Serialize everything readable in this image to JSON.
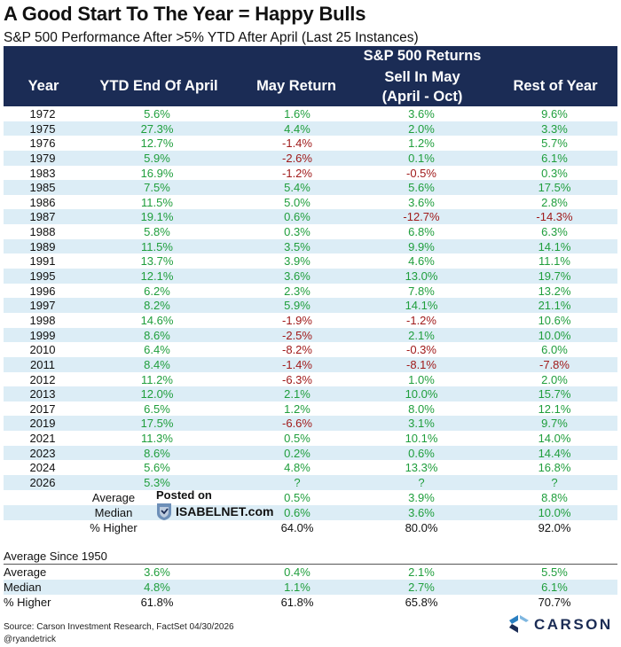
{
  "chart_data": {
    "type": "table",
    "title": "A Good Start To The Year = Happy Bulls",
    "subtitle": "S&P 500 Performance After >5% YTD After April (Last 25 Instances)",
    "header": {
      "year": "Year",
      "ytd": "YTD End Of April",
      "may": "May Return",
      "group": "S&P 500 Returns",
      "sell_line1": "Sell In May",
      "sell_line2": "(April - Oct)",
      "rest": "Rest of Year"
    },
    "rows": [
      {
        "year": "1972",
        "ytd": "5.6%",
        "may": "1.6%",
        "sell": "3.6%",
        "rest": "9.6%"
      },
      {
        "year": "1975",
        "ytd": "27.3%",
        "may": "4.4%",
        "sell": "2.0%",
        "rest": "3.3%"
      },
      {
        "year": "1976",
        "ytd": "12.7%",
        "may": "-1.4%",
        "sell": "1.2%",
        "rest": "5.7%"
      },
      {
        "year": "1979",
        "ytd": "5.9%",
        "may": "-2.6%",
        "sell": "0.1%",
        "rest": "6.1%"
      },
      {
        "year": "1983",
        "ytd": "16.9%",
        "may": "-1.2%",
        "sell": "-0.5%",
        "rest": "0.3%"
      },
      {
        "year": "1985",
        "ytd": "7.5%",
        "may": "5.4%",
        "sell": "5.6%",
        "rest": "17.5%"
      },
      {
        "year": "1986",
        "ytd": "11.5%",
        "may": "5.0%",
        "sell": "3.6%",
        "rest": "2.8%"
      },
      {
        "year": "1987",
        "ytd": "19.1%",
        "may": "0.6%",
        "sell": "-12.7%",
        "rest": "-14.3%"
      },
      {
        "year": "1988",
        "ytd": "5.8%",
        "may": "0.3%",
        "sell": "6.8%",
        "rest": "6.3%"
      },
      {
        "year": "1989",
        "ytd": "11.5%",
        "may": "3.5%",
        "sell": "9.9%",
        "rest": "14.1%"
      },
      {
        "year": "1991",
        "ytd": "13.7%",
        "may": "3.9%",
        "sell": "4.6%",
        "rest": "11.1%"
      },
      {
        "year": "1995",
        "ytd": "12.1%",
        "may": "3.6%",
        "sell": "13.0%",
        "rest": "19.7%"
      },
      {
        "year": "1996",
        "ytd": "6.2%",
        "may": "2.3%",
        "sell": "7.8%",
        "rest": "13.2%"
      },
      {
        "year": "1997",
        "ytd": "8.2%",
        "may": "5.9%",
        "sell": "14.1%",
        "rest": "21.1%"
      },
      {
        "year": "1998",
        "ytd": "14.6%",
        "may": "-1.9%",
        "sell": "-1.2%",
        "rest": "10.6%"
      },
      {
        "year": "1999",
        "ytd": "8.6%",
        "may": "-2.5%",
        "sell": "2.1%",
        "rest": "10.0%"
      },
      {
        "year": "2010",
        "ytd": "6.4%",
        "may": "-8.2%",
        "sell": "-0.3%",
        "rest": "6.0%"
      },
      {
        "year": "2011",
        "ytd": "8.4%",
        "may": "-1.4%",
        "sell": "-8.1%",
        "rest": "-7.8%"
      },
      {
        "year": "2012",
        "ytd": "11.2%",
        "may": "-6.3%",
        "sell": "1.0%",
        "rest": "2.0%"
      },
      {
        "year": "2013",
        "ytd": "12.0%",
        "may": "2.1%",
        "sell": "10.0%",
        "rest": "15.7%"
      },
      {
        "year": "2017",
        "ytd": "6.5%",
        "may": "1.2%",
        "sell": "8.0%",
        "rest": "12.1%"
      },
      {
        "year": "2019",
        "ytd": "17.5%",
        "may": "-6.6%",
        "sell": "3.1%",
        "rest": "9.7%"
      },
      {
        "year": "2021",
        "ytd": "11.3%",
        "may": "0.5%",
        "sell": "10.1%",
        "rest": "14.0%"
      },
      {
        "year": "2023",
        "ytd": "8.6%",
        "may": "0.2%",
        "sell": "0.6%",
        "rest": "14.4%"
      },
      {
        "year": "2024",
        "ytd": "5.6%",
        "may": "4.8%",
        "sell": "13.3%",
        "rest": "16.8%"
      },
      {
        "year": "2026",
        "ytd": "5.3%",
        "may": "?",
        "sell": "?",
        "rest": "?"
      }
    ],
    "summary": [
      {
        "label": "Average",
        "may": "0.5%",
        "sell": "3.9%",
        "rest": "8.8%"
      },
      {
        "label": "Median",
        "may": "0.6%",
        "sell": "3.6%",
        "rest": "10.0%"
      },
      {
        "label": "% Higher",
        "may": "64.0%",
        "sell": "80.0%",
        "rest": "92.0%"
      }
    ],
    "since_title": "Average Since 1950",
    "since": [
      {
        "label": "Average",
        "ytd": "3.6%",
        "may": "0.4%",
        "sell": "2.1%",
        "rest": "5.5%"
      },
      {
        "label": "Median",
        "ytd": "4.8%",
        "may": "1.1%",
        "sell": "2.7%",
        "rest": "6.1%"
      },
      {
        "label": "% Higher",
        "ytd": "61.8%",
        "may": "61.8%",
        "sell": "65.8%",
        "rest": "70.7%"
      }
    ]
  },
  "watermark": {
    "posted": "Posted on",
    "site": "ISABELNET.com"
  },
  "footer": {
    "source": "Source: Carson Investment Research, FactSet 04/30/2026",
    "handle": "@ryandetrick",
    "brand": "CARSON"
  },
  "colors": {
    "header_bg": "#1b2c55",
    "positive": "#1f9e3c",
    "negative": "#a01a1a",
    "stripe": "#dcedf6"
  }
}
